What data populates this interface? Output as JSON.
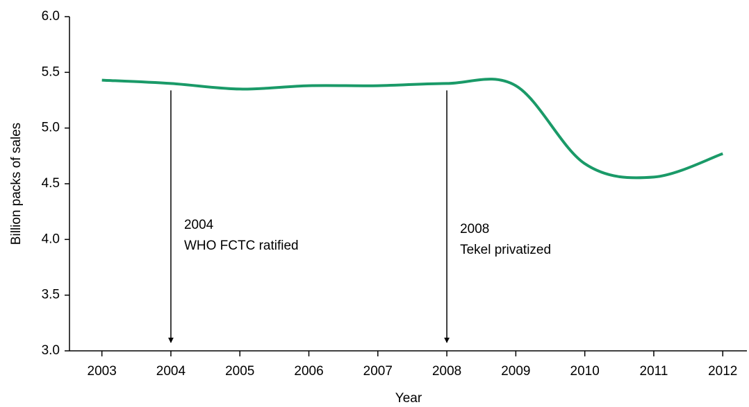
{
  "chart_data": {
    "type": "line",
    "x_label": "Year",
    "y_label": "Billion packs of sales",
    "x": [
      2003,
      2004,
      2005,
      2006,
      2007,
      2008,
      2009,
      2010,
      2011,
      2012
    ],
    "series": [
      {
        "color": "#1a9a68",
        "values": [
          5.43,
          5.4,
          5.35,
          5.38,
          5.38,
          5.4,
          5.38,
          4.68,
          4.56,
          4.77
        ]
      }
    ],
    "xlim": [
      2002.53,
      2012.35
    ],
    "xticks": [
      2003,
      2004,
      2005,
      2006,
      2007,
      2008,
      2009,
      2010,
      2011,
      2012
    ],
    "ylim": [
      3,
      6
    ],
    "yticks": [
      {
        "value": 3,
        "label": "3.0"
      },
      {
        "value": 3.5,
        "label": "3.5"
      },
      {
        "value": 4,
        "label": "4.0"
      },
      {
        "value": 4.5,
        "label": "4.5"
      },
      {
        "value": 5,
        "label": "5.0"
      },
      {
        "value": 5.5,
        "label": "5.5"
      },
      {
        "value": 6,
        "label": "6.0"
      }
    ],
    "annotations": [
      {
        "x": 2004,
        "lines": [
          "2004",
          "WHO FCTC ratified"
        ]
      },
      {
        "x": 2008,
        "lines": [
          "2008",
          "Tekel privatized"
        ]
      }
    ]
  }
}
